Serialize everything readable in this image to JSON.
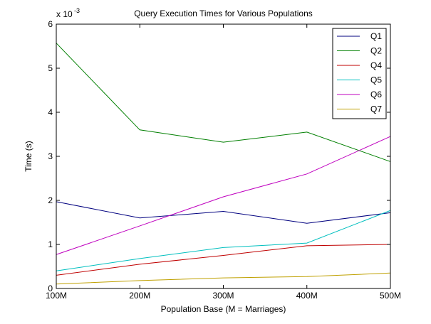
{
  "chart_data": {
    "type": "line",
    "title": "Query Execution Times for Various Populations",
    "xlabel": "Population Base (M = Marriages)",
    "ylabel": "Time (s)",
    "y_multiplier_label": "x 10",
    "y_multiplier_exponent": "-3",
    "categories": [
      "100M",
      "200M",
      "300M",
      "400M",
      "500M"
    ],
    "x": [
      100,
      200,
      300,
      400,
      500
    ],
    "xlim": [
      100,
      500
    ],
    "ylim": [
      0,
      6
    ],
    "yticks": [
      0,
      1,
      2,
      3,
      4,
      5,
      6
    ],
    "ytick_labels": [
      "0",
      "1",
      "2",
      "3",
      "4",
      "5",
      "6"
    ],
    "grid": false,
    "legend_position": "top-right",
    "series": [
      {
        "name": "Q1",
        "color": "#00007f",
        "values": [
          1.97,
          1.6,
          1.75,
          1.48,
          1.72
        ]
      },
      {
        "name": "Q2",
        "color": "#007f00",
        "values": [
          5.57,
          3.6,
          3.32,
          3.55,
          2.88
        ]
      },
      {
        "name": "Q4",
        "color": "#bf0000",
        "values": [
          0.3,
          0.55,
          0.75,
          0.97,
          1.0
        ]
      },
      {
        "name": "Q5",
        "color": "#00bfbf",
        "values": [
          0.4,
          0.68,
          0.93,
          1.03,
          1.77
        ]
      },
      {
        "name": "Q6",
        "color": "#bf00bf",
        "values": [
          0.77,
          1.42,
          2.08,
          2.6,
          3.45
        ]
      },
      {
        "name": "Q7",
        "color": "#bfa000",
        "values": [
          0.1,
          0.18,
          0.24,
          0.27,
          0.35
        ]
      }
    ]
  }
}
